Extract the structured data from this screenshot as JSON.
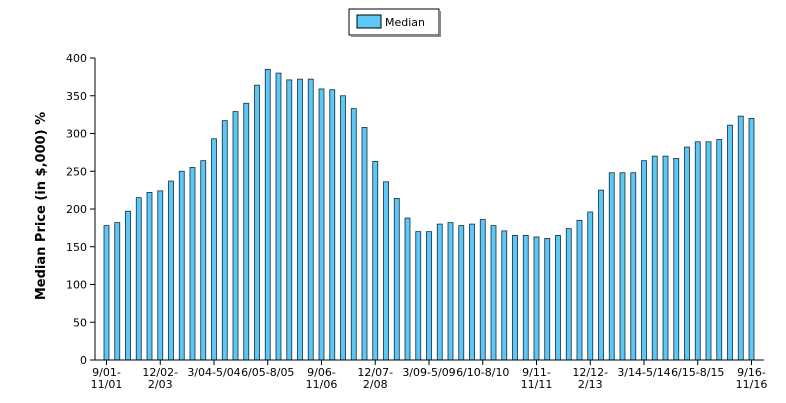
{
  "chart_data": {
    "type": "bar",
    "ylabel": "Median Price (in $,000) %",
    "ylim": [
      0,
      400
    ],
    "y_ticks": [
      0,
      50,
      100,
      150,
      200,
      250,
      300,
      350,
      400
    ],
    "grid": false,
    "legend_position": "top-center",
    "series": [
      {
        "name": "Median",
        "color": "#5bc8f5",
        "values": [
          178,
          182,
          197,
          215,
          222,
          224,
          237,
          250,
          255,
          264,
          293,
          317,
          329,
          340,
          364,
          385,
          380,
          371,
          372,
          372,
          359,
          358,
          350,
          333,
          308,
          263,
          236,
          214,
          188,
          170,
          170,
          180,
          182,
          178,
          180,
          186,
          178,
          171,
          165,
          165,
          163,
          161,
          165,
          174,
          185,
          196,
          225,
          248,
          248,
          248,
          264,
          270,
          270,
          267,
          282,
          289,
          289,
          292,
          311,
          323,
          320
        ]
      }
    ],
    "x_tick_labels": [
      {
        "line1": "9/01-",
        "line2": "11/01"
      },
      {
        "line1": "12/02-",
        "line2": "2/03"
      },
      {
        "line1": "3/04-5/04",
        "line2": ""
      },
      {
        "line1": "6/05-8/05",
        "line2": ""
      },
      {
        "line1": "9/06-",
        "line2": "11/06"
      },
      {
        "line1": "12/07-",
        "line2": "2/08"
      },
      {
        "line1": "3/09-5/09",
        "line2": ""
      },
      {
        "line1": "6/10-8/10",
        "line2": ""
      },
      {
        "line1": "9/11-",
        "line2": "11/11"
      },
      {
        "line1": "12/12-",
        "line2": "2/13"
      },
      {
        "line1": "3/14-5/14",
        "line2": ""
      },
      {
        "line1": "6/15-8/15",
        "line2": ""
      },
      {
        "line1": "9/16-",
        "line2": "11/16"
      }
    ]
  }
}
